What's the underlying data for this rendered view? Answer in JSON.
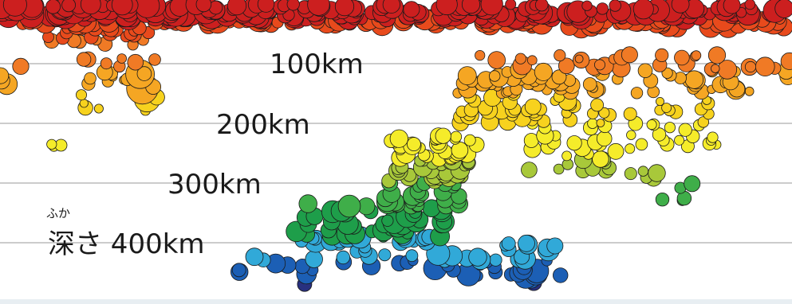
{
  "chart_data": {
    "type": "scatter",
    "xlabel": "",
    "ylabel": "",
    "ylim": [
      0,
      470
    ],
    "y_reversed": true,
    "grid": true,
    "depth_ticks": [
      {
        "value": 100,
        "label": "100km"
      },
      {
        "value": 200,
        "label": "200km"
      },
      {
        "value": 300,
        "label": "300km"
      },
      {
        "value": 400,
        "label": "深さ 400km",
        "ruby": "ふか"
      }
    ],
    "colors": {
      "shallow": "#cc1f1f",
      "s60": "#e84a1c",
      "s100": "#f07a25",
      "s150": "#f5a623",
      "s200": "#f7d21e",
      "s250": "#f5ec2a",
      "s300": "#a8c83a",
      "s340": "#3fae49",
      "s380": "#1e9e4a",
      "s420": "#31a9d8",
      "deep": "#1c5fb5",
      "deepest": "#28307f"
    },
    "clusters": [
      {
        "x": [
          0,
          330
        ],
        "depth": [
          0,
          35
        ],
        "n": 140,
        "rmin": 7,
        "rmax": 16
      },
      {
        "x": [
          330,
          640
        ],
        "depth": [
          0,
          35
        ],
        "n": 120,
        "rmin": 7,
        "rmax": 14
      },
      {
        "x": [
          640,
          993
        ],
        "depth": [
          0,
          40
        ],
        "n": 130,
        "rmin": 6,
        "rmax": 15
      },
      {
        "x": [
          60,
          190
        ],
        "depth": [
          40,
          70
        ],
        "n": 25,
        "rmin": 6,
        "rmax": 10
      },
      {
        "x": [
          0,
          40
        ],
        "depth": [
          85,
          140
        ],
        "n": 4,
        "rmin": 10,
        "rmax": 14
      },
      {
        "x": [
          90,
          200
        ],
        "depth": [
          90,
          180
        ],
        "n": 26,
        "rmin": 5,
        "rmax": 10
      },
      {
        "x": [
          170,
          200
        ],
        "depth": [
          110,
          160
        ],
        "n": 3,
        "rmin": 14,
        "rmax": 20
      },
      {
        "x": [
          60,
          100
        ],
        "depth": [
          210,
          240
        ],
        "n": 3,
        "rmin": 6,
        "rmax": 8
      },
      {
        "x": [
          600,
          990
        ],
        "depth": [
          85,
          150
        ],
        "n": 80,
        "rmin": 5,
        "rmax": 12
      },
      {
        "x": [
          570,
          720
        ],
        "depth": [
          120,
          200
        ],
        "n": 60,
        "rmin": 6,
        "rmax": 12
      },
      {
        "x": [
          740,
          910
        ],
        "depth": [
          160,
          240
        ],
        "n": 35,
        "rmin": 5,
        "rmax": 9
      },
      {
        "x": [
          490,
          600
        ],
        "depth": [
          220,
          290
        ],
        "n": 55,
        "rmin": 6,
        "rmax": 12
      },
      {
        "x": [
          660,
          790
        ],
        "depth": [
          200,
          280
        ],
        "n": 30,
        "rmin": 6,
        "rmax": 11
      },
      {
        "x": [
          790,
          880
        ],
        "depth": [
          280,
          330
        ],
        "n": 10,
        "rmin": 6,
        "rmax": 11
      },
      {
        "x": [
          480,
          580
        ],
        "depth": [
          285,
          340
        ],
        "n": 40,
        "rmin": 6,
        "rmax": 12
      },
      {
        "x": [
          370,
          560
        ],
        "depth": [
          330,
          400
        ],
        "n": 70,
        "rmin": 7,
        "rmax": 14
      },
      {
        "x": [
          290,
          400
        ],
        "depth": [
          420,
          460
        ],
        "n": 12,
        "rmin": 7,
        "rmax": 13
      },
      {
        "x": [
          420,
          520
        ],
        "depth": [
          400,
          440
        ],
        "n": 14,
        "rmin": 6,
        "rmax": 12
      },
      {
        "x": [
          540,
          710
        ],
        "depth": [
          400,
          460
        ],
        "n": 38,
        "rmin": 6,
        "rmax": 15
      },
      {
        "x": [
          380,
          390
        ],
        "depth": [
          460,
          470
        ],
        "n": 1,
        "rmin": 9,
        "rmax": 9
      },
      {
        "x": [
          660,
          670
        ],
        "depth": [
          465,
          470
        ],
        "n": 1,
        "rmin": 10,
        "rmax": 10
      }
    ]
  }
}
